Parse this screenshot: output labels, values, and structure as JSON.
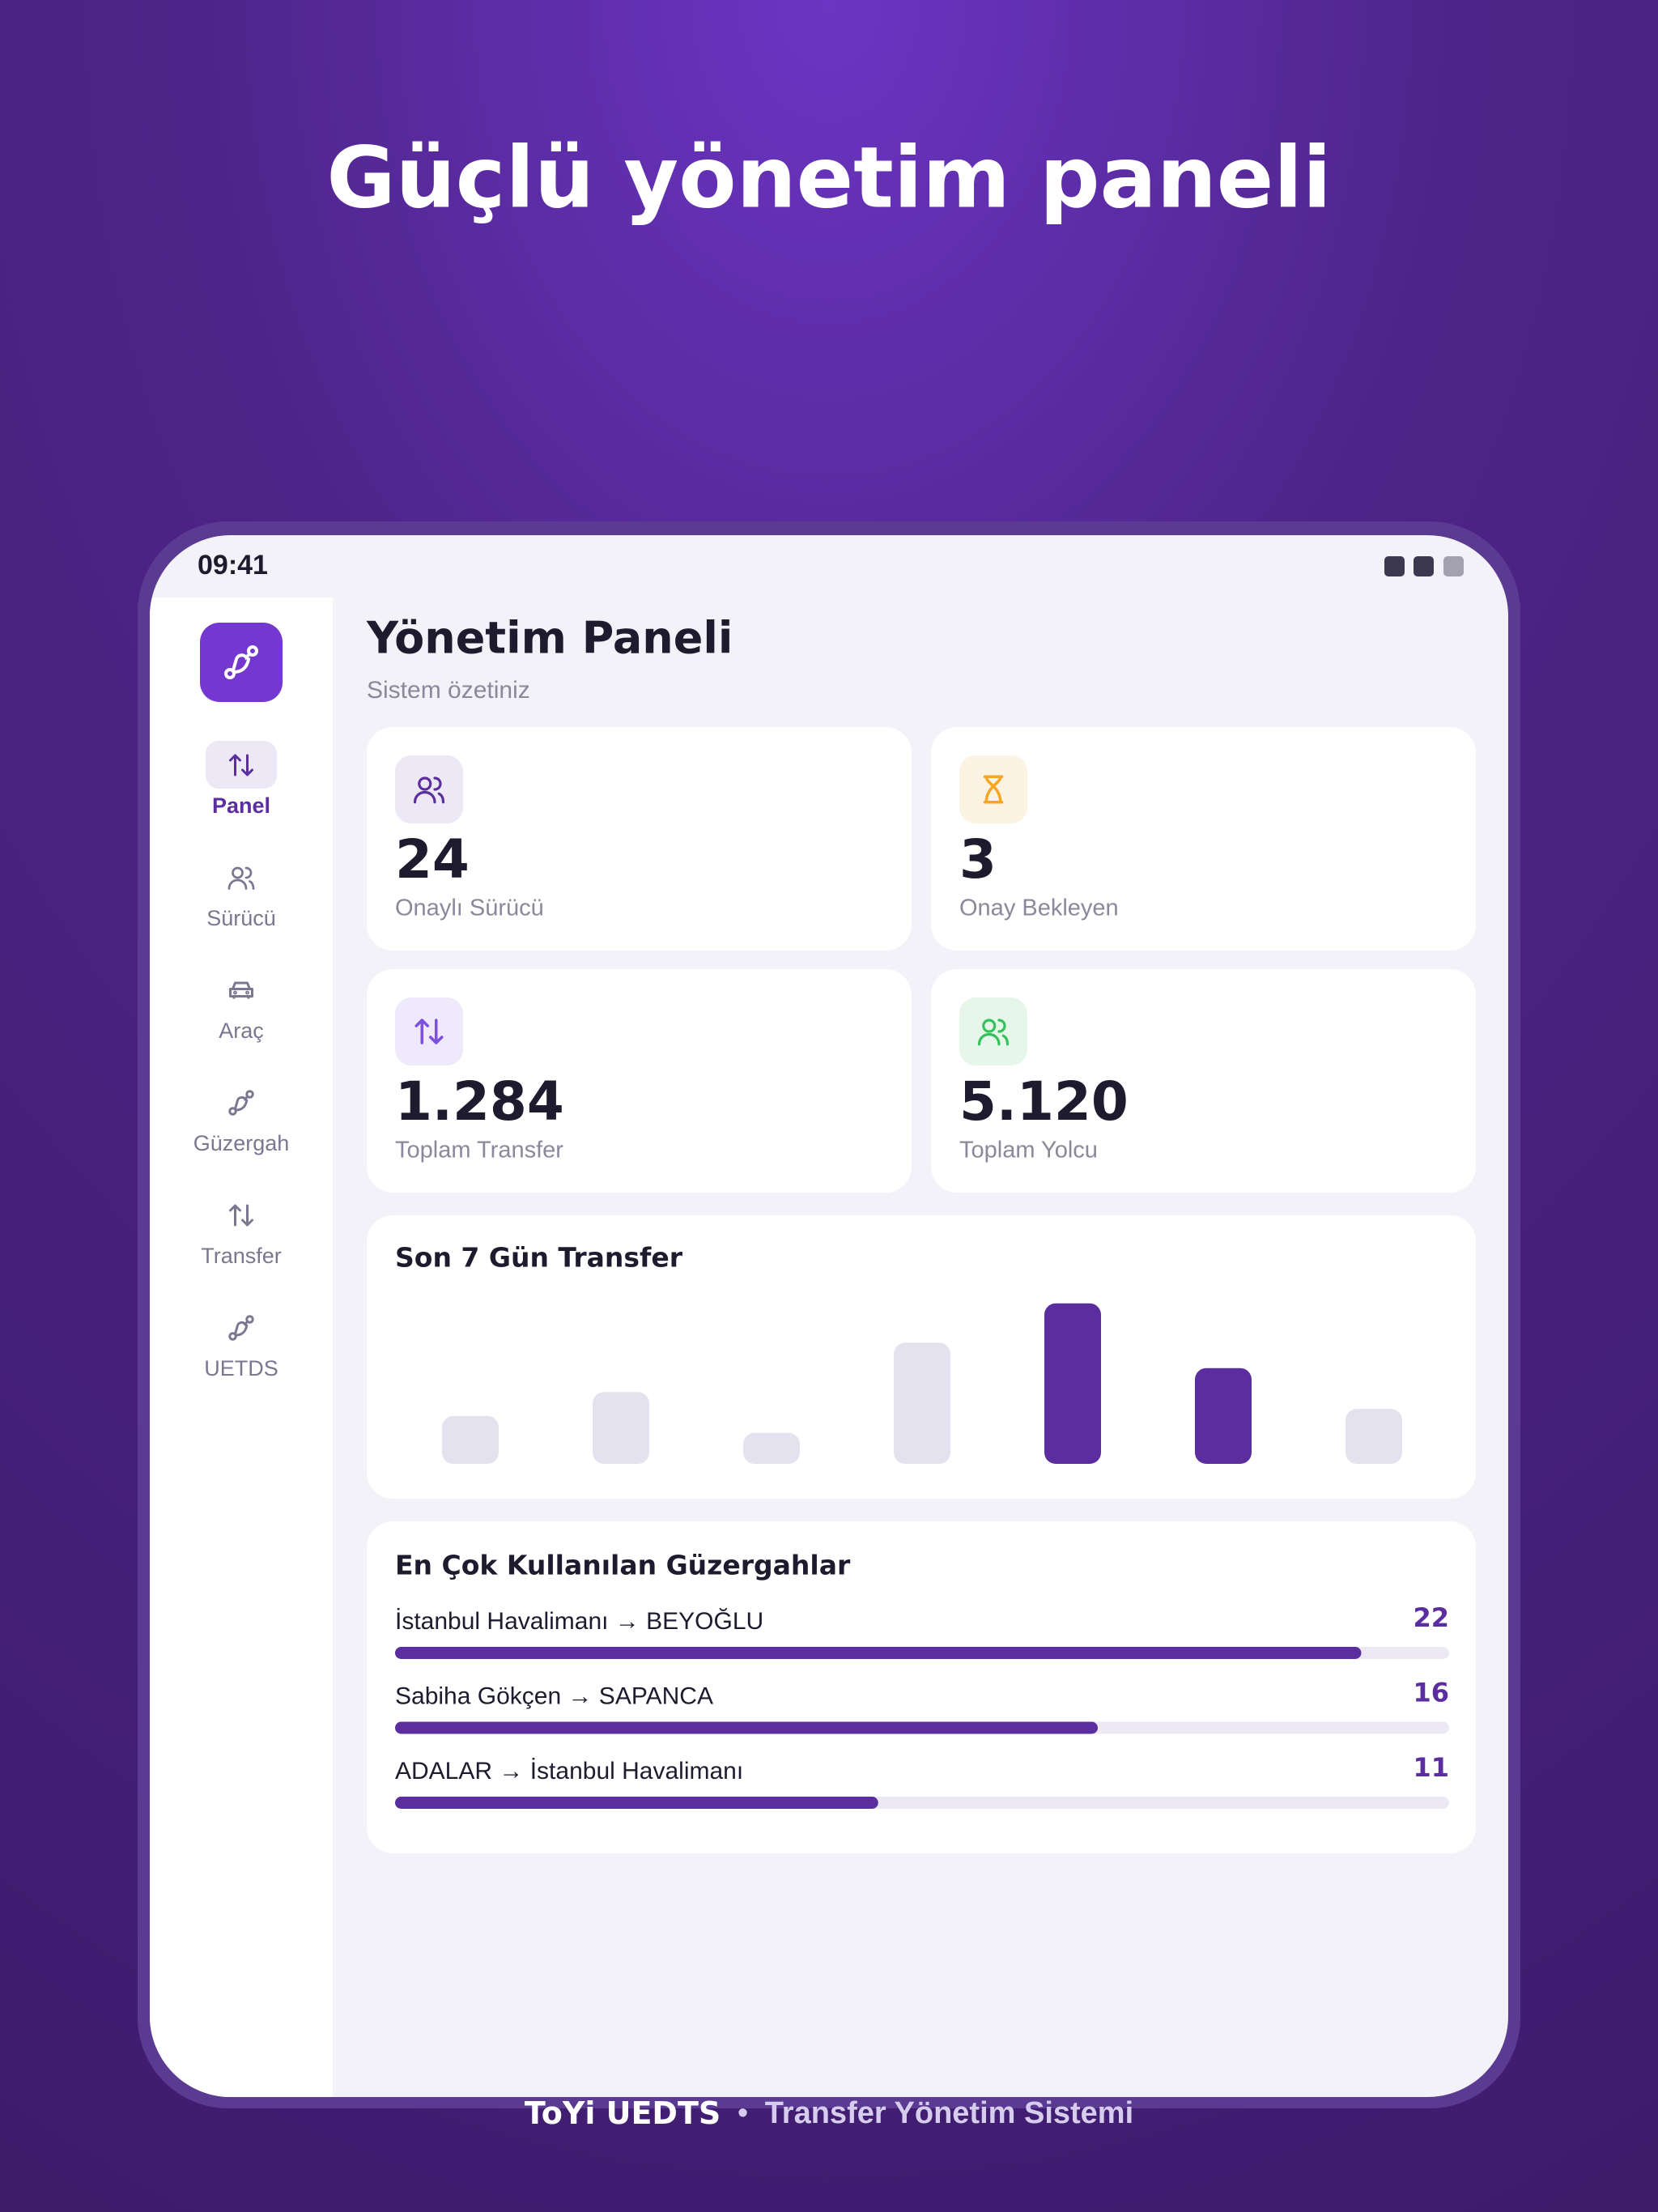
{
  "header": {
    "title": "Güçlü yönetim paneli"
  },
  "status": {
    "time": "09:41"
  },
  "sidebar": {
    "items": [
      "Panel",
      "Sürücü",
      "Araç",
      "Güzergah",
      "Transfer",
      "UETDS"
    ]
  },
  "main": {
    "title": "Yönetim Paneli",
    "subtitle": "Sistem özetiniz"
  },
  "stats": [
    {
      "value": "24",
      "label": "Onaylı Sürücü"
    },
    {
      "value": "3",
      "label": "Onay Bekleyen"
    },
    {
      "value": "1.284",
      "label": "Toplam Transfer"
    },
    {
      "value": "5.120",
      "label": "Toplam Yolcu"
    }
  ],
  "chart_data": {
    "type": "bar",
    "title": "Son 7 Gün Transfer",
    "categories": [
      null,
      null,
      null,
      null,
      null,
      null,
      null
    ],
    "values": [
      34,
      51,
      22,
      86,
      114,
      68,
      39
    ],
    "colors": [
      "#e4e2ee",
      "#e4e2ee",
      "#e4e2ee",
      "#e4e2ee",
      "#5b2d9e",
      "#5b2d9e",
      "#e4e2ee"
    ],
    "ylim": [
      0,
      115
    ]
  },
  "routes": {
    "title": "En Çok Kullanılan Güzergahlar",
    "xlim": [
      0,
      24
    ],
    "color": "#5b2d9e",
    "items": [
      {
        "name": "İstanbul Havalimanı → BEYOĞLU",
        "value": 22
      },
      {
        "name": "Sabiha Gökçen → SAPANCA",
        "value": 16
      },
      {
        "name": "ADALAR → İstanbul Havalimanı",
        "value": 11
      }
    ]
  },
  "footer": {
    "brand": "ToYi UEDTS",
    "separator": "•",
    "tagline": "Transfer Yönetim Sistemi"
  }
}
